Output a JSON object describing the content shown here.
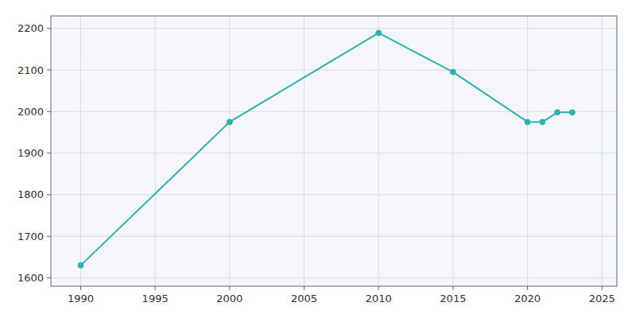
{
  "chart_data": {
    "type": "line",
    "x": [
      1990,
      2000,
      2010,
      2015,
      2020,
      2021,
      2022,
      2023
    ],
    "values": [
      1630,
      1975,
      2189,
      2095,
      1975,
      1975,
      1998,
      1998
    ],
    "color": "#2ab5b5",
    "marker": "circle",
    "xlim": [
      1988,
      2026
    ],
    "ylim": [
      1580,
      2230
    ],
    "xticks": [
      1990,
      1995,
      2000,
      2005,
      2010,
      2015,
      2020,
      2025
    ],
    "yticks": [
      1600,
      1700,
      1800,
      1900,
      2000,
      2100,
      2200
    ],
    "grid": true
  }
}
